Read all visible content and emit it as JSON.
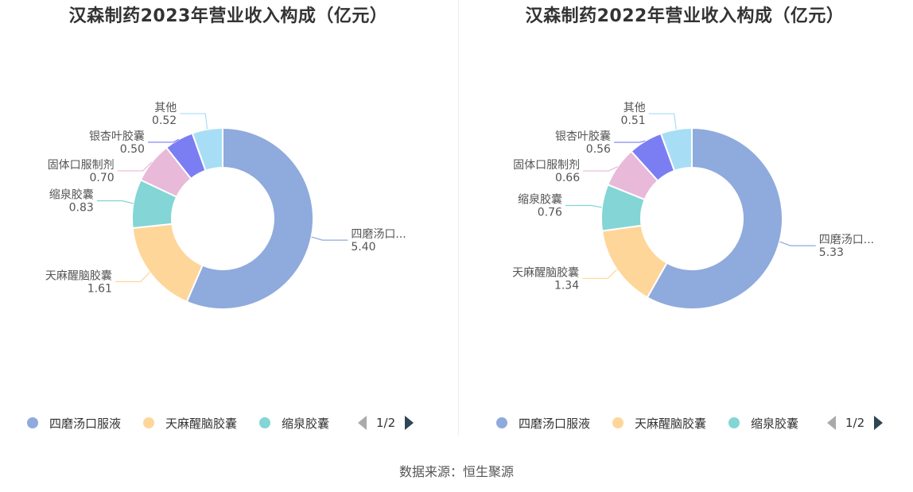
{
  "source": "数据来源：恒生聚源",
  "colors": [
    "#8faadc",
    "#ffd699",
    "#84d5d5",
    "#e8b9d9",
    "#7b7ef2",
    "#a8def5"
  ],
  "chart_data": [
    {
      "type": "pie",
      "variant": "donut",
      "title": "汉森制药2023年营业收入构成（亿元）",
      "slices": [
        {
          "name": "四磨汤口服液",
          "label": "四磨汤口...",
          "value": 5.4,
          "display": "5.40"
        },
        {
          "name": "天麻醒脑胶囊",
          "label": "天麻醒脑胶囊",
          "value": 1.61,
          "display": "1.61"
        },
        {
          "name": "缩泉胶囊",
          "label": "缩泉胶囊",
          "value": 0.83,
          "display": "0.83"
        },
        {
          "name": "固体口服制剂",
          "label": "固体口服制剂",
          "value": 0.7,
          "display": "0.70"
        },
        {
          "name": "银杏叶胶囊",
          "label": "银杏叶胶囊",
          "value": 0.5,
          "display": "0.50"
        },
        {
          "name": "其他",
          "label": "其他",
          "value": 0.52,
          "display": "0.52"
        }
      ],
      "legend": {
        "items": [
          "四磨汤口服液",
          "天麻醒脑胶囊",
          "缩泉胶囊"
        ],
        "page": "1/2",
        "placement": "bottom"
      }
    },
    {
      "type": "pie",
      "variant": "donut",
      "title": "汉森制药2022年营业收入构成（亿元）",
      "slices": [
        {
          "name": "四磨汤口服液",
          "label": "四磨汤口...",
          "value": 5.33,
          "display": "5.33"
        },
        {
          "name": "天麻醒脑胶囊",
          "label": "天麻醒脑胶囊",
          "value": 1.34,
          "display": "1.34"
        },
        {
          "name": "缩泉胶囊",
          "label": "缩泉胶囊",
          "value": 0.76,
          "display": "0.76"
        },
        {
          "name": "固体口服制剂",
          "label": "固体口服制剂",
          "value": 0.66,
          "display": "0.66"
        },
        {
          "name": "银杏叶胶囊",
          "label": "银杏叶胶囊",
          "value": 0.56,
          "display": "0.56"
        },
        {
          "name": "其他",
          "label": "其他",
          "value": 0.51,
          "display": "0.51"
        }
      ],
      "legend": {
        "items": [
          "四磨汤口服液",
          "天麻醒脑胶囊",
          "缩泉胶囊"
        ],
        "page": "1/2",
        "placement": "bottom"
      }
    }
  ]
}
